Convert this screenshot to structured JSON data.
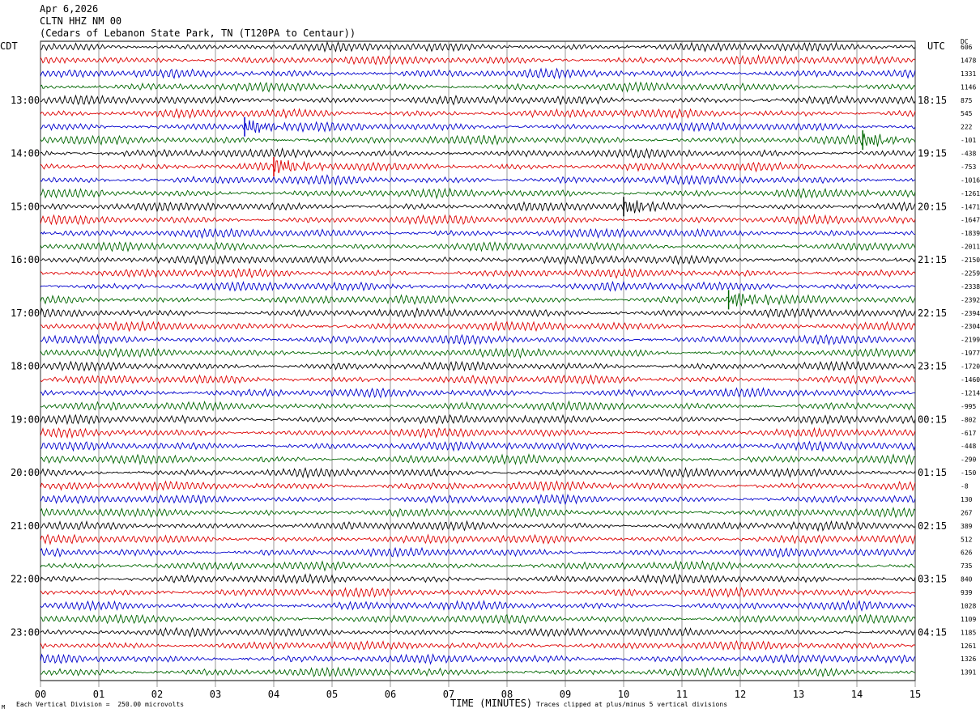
{
  "header": {
    "date": "Apr 6,2026",
    "station": "CLTN HHZ NM 00",
    "location": "(Cedars of Lebanon State Park, TN (T120PA to Centaur))"
  },
  "timezones": {
    "left": "CDT",
    "right": "UTC",
    "dc": "DC"
  },
  "footer": {
    "scale_text": "Each Vertical Division =  250.00 microvolts",
    "clip_text": "Traces clipped at plus/minus 5 vertical divisions",
    "corner_mark": "M"
  },
  "colors": {
    "cycle": [
      "#000000",
      "#dd0000",
      "#0000cc",
      "#006600"
    ]
  },
  "chart_data": {
    "type": "line",
    "xlabel": "TIME (MINUTES)",
    "xlim": [
      0,
      15
    ],
    "x_ticks": [
      "00",
      "01",
      "02",
      "03",
      "04",
      "05",
      "06",
      "07",
      "08",
      "09",
      "10",
      "11",
      "12",
      "13",
      "14",
      "15"
    ],
    "left_labels": [
      "13:00",
      "14:00",
      "15:00",
      "16:00",
      "17:00",
      "18:00",
      "19:00",
      "20:00",
      "21:00",
      "22:00",
      "23:00"
    ],
    "right_labels": [
      "18:15",
      "19:15",
      "20:15",
      "21:15",
      "22:15",
      "23:15",
      "00:15",
      "01:15",
      "02:15",
      "03:15",
      "04:15"
    ],
    "dc_offsets": [
      "606",
      "1478",
      "1331",
      "1146",
      "875",
      "545",
      "222",
      "-101",
      "-438",
      "-753",
      "-1016",
      "-1261",
      "-1471",
      "-1647",
      "-1839",
      "-2011",
      "-2150",
      "-2259",
      "-2338",
      "-2392",
      "-2394",
      "-2304",
      "-2199",
      "-1977",
      "-1720",
      "-1460",
      "-1214",
      "-995",
      "-802",
      "-617",
      "-448",
      "-290",
      "-150",
      "-8",
      "130",
      "267",
      "389",
      "512",
      "626",
      "735",
      "840",
      "939",
      "1028",
      "1109",
      "1185",
      "1261",
      "1326",
      "1391"
    ],
    "events": [
      {
        "trace": 6,
        "minute": 3.5,
        "color": "#0000cc"
      },
      {
        "trace": 7,
        "minute": 14.1,
        "color": "#006600"
      },
      {
        "trace": 9,
        "minute": 4.0,
        "color": "#dd0000"
      },
      {
        "trace": 12,
        "minute": 10.0,
        "color": "#000000"
      },
      {
        "trace": 19,
        "minute": 11.8,
        "color": "#006600"
      }
    ]
  }
}
